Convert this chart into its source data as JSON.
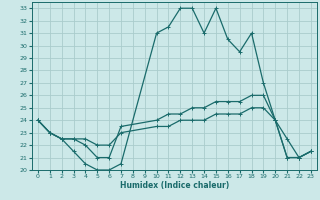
{
  "xlabel": "Humidex (Indice chaleur)",
  "background_color": "#cce8e8",
  "grid_color": "#aacccc",
  "line_color": "#1a6b6b",
  "xlim": [
    -0.5,
    23.5
  ],
  "ylim": [
    20,
    33.5
  ],
  "yticks": [
    20,
    21,
    22,
    23,
    24,
    25,
    26,
    27,
    28,
    29,
    30,
    31,
    32,
    33
  ],
  "xticks": [
    0,
    1,
    2,
    3,
    4,
    5,
    6,
    7,
    8,
    9,
    10,
    11,
    12,
    13,
    14,
    15,
    16,
    17,
    18,
    19,
    20,
    21,
    22,
    23
  ],
  "line1_x": [
    0,
    1,
    2,
    3,
    4,
    5,
    6,
    7,
    10,
    11,
    12,
    13,
    14,
    15,
    16,
    17,
    18,
    19,
    20,
    21,
    22,
    23
  ],
  "line1_y": [
    24,
    23,
    22.5,
    21.5,
    20.5,
    20,
    20,
    20.5,
    31,
    31.5,
    33,
    33,
    31,
    33,
    30.5,
    29.5,
    31,
    27,
    24,
    22.5,
    21,
    21.5
  ],
  "line2_x": [
    0,
    1,
    2,
    3,
    4,
    5,
    6,
    7,
    10,
    11,
    12,
    13,
    14,
    15,
    16,
    17,
    18,
    19,
    20,
    21,
    22,
    23
  ],
  "line2_y": [
    24,
    23,
    22.5,
    22.5,
    22,
    21,
    21,
    23.5,
    24,
    24.5,
    24.5,
    25,
    25,
    25.5,
    25.5,
    25.5,
    26,
    26,
    24,
    21,
    21,
    21.5
  ],
  "line3_x": [
    0,
    1,
    2,
    3,
    4,
    5,
    6,
    7,
    10,
    11,
    12,
    13,
    14,
    15,
    16,
    17,
    18,
    19,
    20,
    21,
    22,
    23
  ],
  "line3_y": [
    24,
    23,
    22.5,
    22.5,
    22.5,
    22,
    22,
    23,
    23.5,
    23.5,
    24,
    24,
    24,
    24.5,
    24.5,
    24.5,
    25,
    25,
    24,
    21,
    21,
    21.5
  ]
}
